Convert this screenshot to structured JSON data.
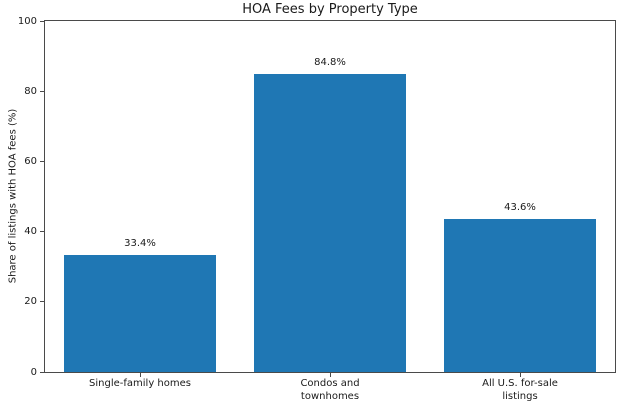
{
  "chart_data": {
    "type": "bar",
    "title": "HOA Fees by Property Type",
    "xlabel": "",
    "ylabel": "Share of listings with HOA fees (%)",
    "categories": [
      "Single-family homes",
      "Condos and\ntownhomes",
      "All U.S. for-sale\nlistings"
    ],
    "values": [
      33.4,
      84.8,
      43.6
    ],
    "value_labels": [
      "33.4%",
      "84.8%",
      "43.6%"
    ],
    "ylim": [
      0,
      100
    ],
    "yticks": [
      0,
      20,
      40,
      60,
      80,
      100
    ],
    "grid": false,
    "legend": null,
    "colors": {
      "bar": "#1f77b4",
      "text": "#1a1a1a",
      "spine": "#4a4a4a",
      "background": "#ffffff"
    }
  }
}
